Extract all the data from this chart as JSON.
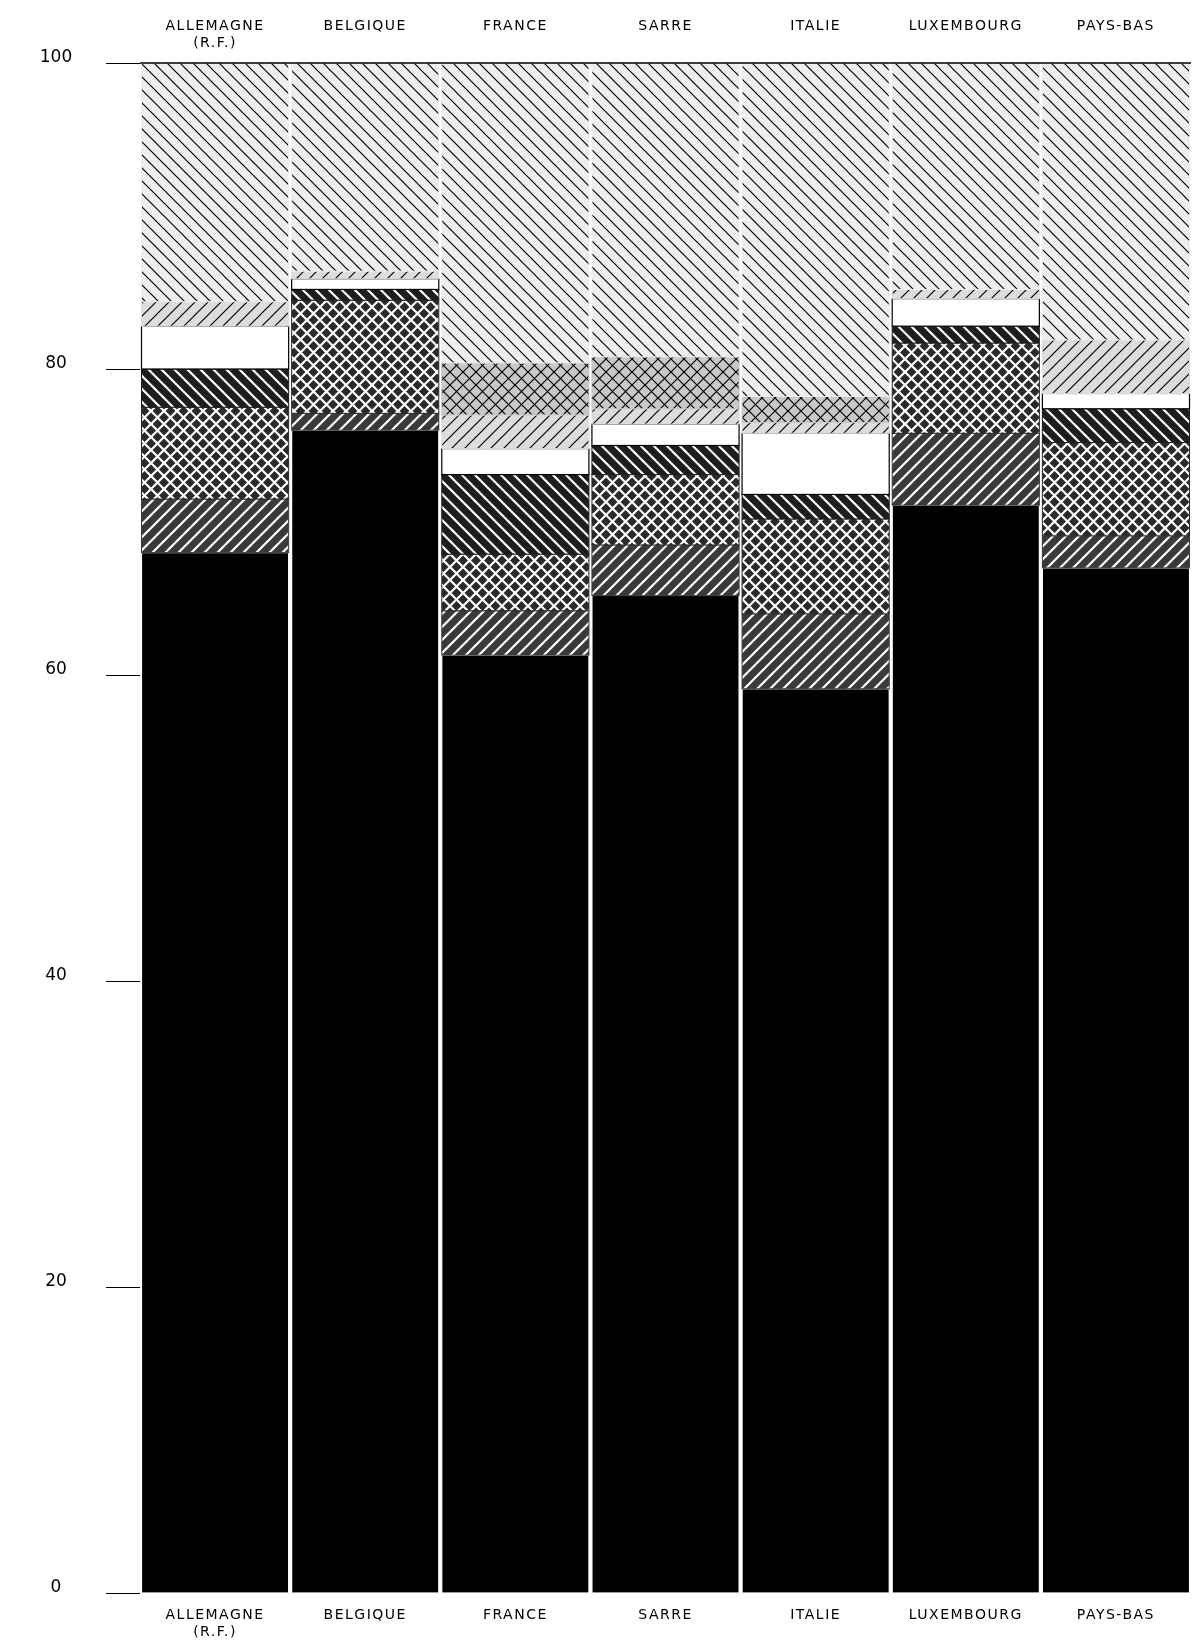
{
  "chart_data": {
    "type": "bar",
    "stacked": true,
    "categories": [
      "ALLEMAGNE\n(R.F.)",
      "BELGIQUE",
      "FRANCE",
      "SARRE",
      "ITALIE",
      "LUXEMBOURG",
      "PAYS-BAS"
    ],
    "series": [
      {
        "color": "#000000",
        "values": [
          68,
          76,
          61.3,
          65.2,
          59.1,
          71.1,
          67
        ]
      },
      {
        "color": "#3a3a3a",
        "values": [
          3.5,
          1.1,
          2.9,
          3.3,
          4.9,
          4.7,
          2.1
        ]
      },
      {
        "color": "#2a2a2a",
        "values": [
          6,
          7.4,
          3.7,
          4.6,
          6.2,
          5.9,
          6.1
        ]
      },
      {
        "color": "#1e1e1e",
        "values": [
          2.5,
          0.7,
          5.2,
          1.9,
          1.6,
          1.1,
          2.2
        ]
      },
      {
        "color": "#ffffff",
        "values": [
          2.8,
          0.7,
          1.7,
          1.4,
          4.0,
          1.8,
          1.0
        ]
      },
      {
        "color": "#dddddd",
        "values": [
          1.6,
          0.5,
          2.2,
          1.0,
          0.7,
          0.6,
          3.5
        ]
      },
      {
        "color": "#c8c8c8",
        "values": [
          0,
          0,
          3.4,
          3.4,
          1.7,
          0,
          0
        ]
      },
      {
        "color": "#eeeeee",
        "values": [
          15.6,
          13.6,
          19.6,
          19.2,
          21.8,
          14.8,
          18.1
        ]
      }
    ],
    "ylim": [
      0,
      100
    ],
    "yticks": [
      0,
      20,
      40,
      60,
      80,
      100
    ]
  }
}
